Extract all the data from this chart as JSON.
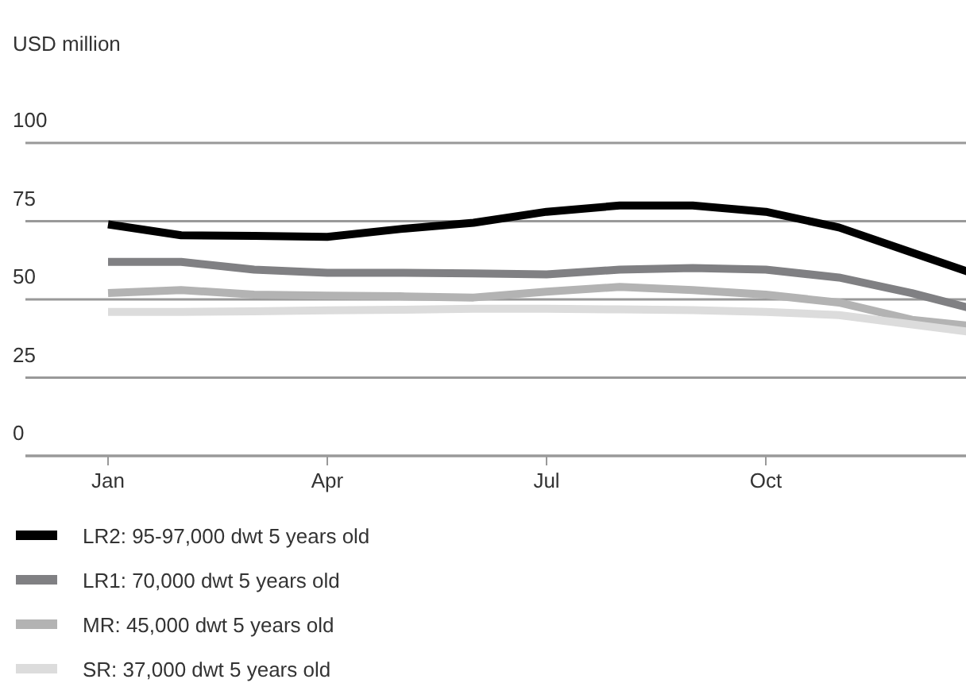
{
  "chart_data": {
    "type": "line",
    "ylabel": "USD million",
    "categories": [
      "Jan",
      null,
      null,
      "Apr",
      null,
      null,
      "Jul",
      null,
      null,
      "Oct",
      null,
      null,
      null
    ],
    "ylim": [
      0,
      100
    ],
    "yticks": [
      0,
      25,
      50,
      75,
      100
    ],
    "grid": "y",
    "legend": "bottom",
    "marker": "none",
    "line_style": "solid",
    "series": [
      {
        "name": "LR2: 95-97,000 dwt 5 years old",
        "color": "#000000",
        "values": [
          74,
          70.5,
          70.3,
          70,
          72.5,
          74.5,
          78,
          80,
          80,
          78,
          73,
          65,
          57
        ]
      },
      {
        "name": "LR1: 70,000 dwt 5 years old",
        "color": "#808083",
        "values": [
          62,
          62,
          59.5,
          58.5,
          58.5,
          58.3,
          58,
          59.5,
          60,
          59.5,
          57,
          52,
          46
        ]
      },
      {
        "name": "MR: 45,000 dwt 5 years old",
        "color": "#b3b3b3",
        "values": [
          52,
          53,
          51.5,
          51.2,
          51,
          50.6,
          52.5,
          54,
          53,
          51.5,
          49,
          43.5,
          41
        ]
      },
      {
        "name": "SR: 37,000 dwt 5 years old",
        "color": "#dcdcdc",
        "values": [
          46,
          46,
          46.2,
          46.5,
          46.7,
          47,
          47,
          46.8,
          46.6,
          46,
          45,
          42,
          39
        ]
      }
    ]
  }
}
